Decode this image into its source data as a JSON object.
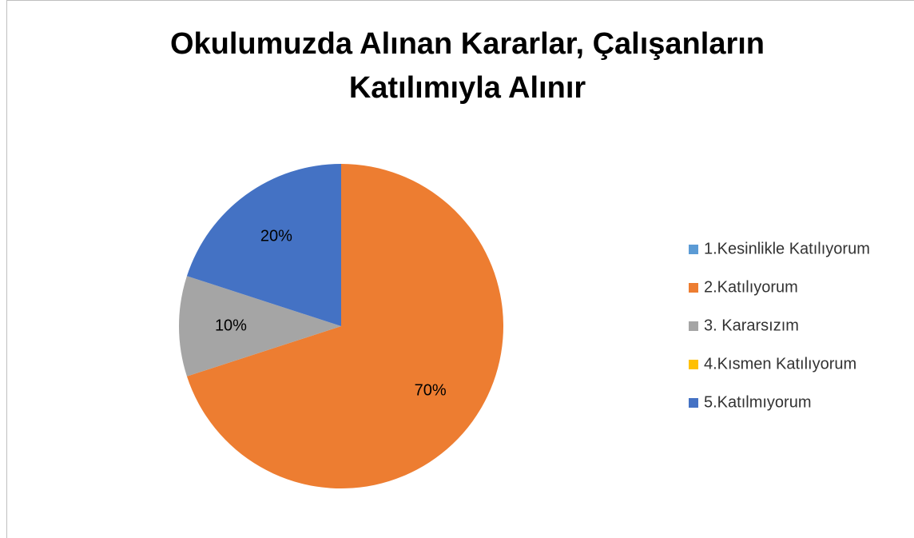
{
  "chart_data": {
    "type": "pie",
    "title": "Okulumuzda Alınan Kararlar, Çalışanların Katılımıyla Alınır",
    "categories": [
      "1.Kesinlikle Katılıyorum",
      "2.Katılıyorum",
      "3. Kararsızım",
      "4.Kısmen Katılıyorum",
      "5.Katılmıyorum"
    ],
    "values": [
      0,
      70,
      10,
      0,
      20
    ],
    "value_labels": [
      null,
      "70%",
      "10%",
      null,
      "20%"
    ],
    "colors": [
      "#5b9bd5",
      "#ed7d31",
      "#a5a5a5",
      "#ffc000",
      "#4472c4"
    ],
    "legend": "right"
  }
}
